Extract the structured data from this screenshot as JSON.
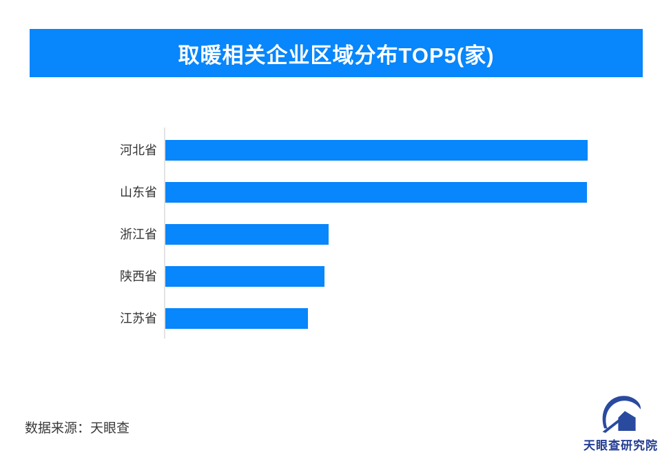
{
  "title": {
    "text": "取暖相关企业区域分布TOP5(家)"
  },
  "colors": {
    "primary_blue": "#0886FB",
    "axis_gray": "#e3e3e3",
    "label_dark": "#333333",
    "logo_navy": "#2a4aa0",
    "logo_text_navy": "#233d92",
    "title_text": "#ffffff",
    "background": "#ffffff"
  },
  "chart_data": {
    "type": "bar",
    "orientation": "horizontal",
    "title": "取暖相关企业区域分布TOP5(家)",
    "categories": [
      "河北省",
      "山东省",
      "浙江省",
      "陕西省",
      "江苏省"
    ],
    "values": [
      100,
      99.8,
      38.7,
      37.7,
      33.8
    ],
    "value_note": "no numeric axis or data labels shown; values estimated as percent of longest bar",
    "xlabel": "",
    "ylabel": "",
    "xlim": [
      0,
      100
    ],
    "grid": false,
    "legend": false,
    "bar_color": "#0886FB"
  },
  "footer": {
    "source_label": "数据来源：天眼查",
    "logo_text": "天眼查研究院"
  }
}
